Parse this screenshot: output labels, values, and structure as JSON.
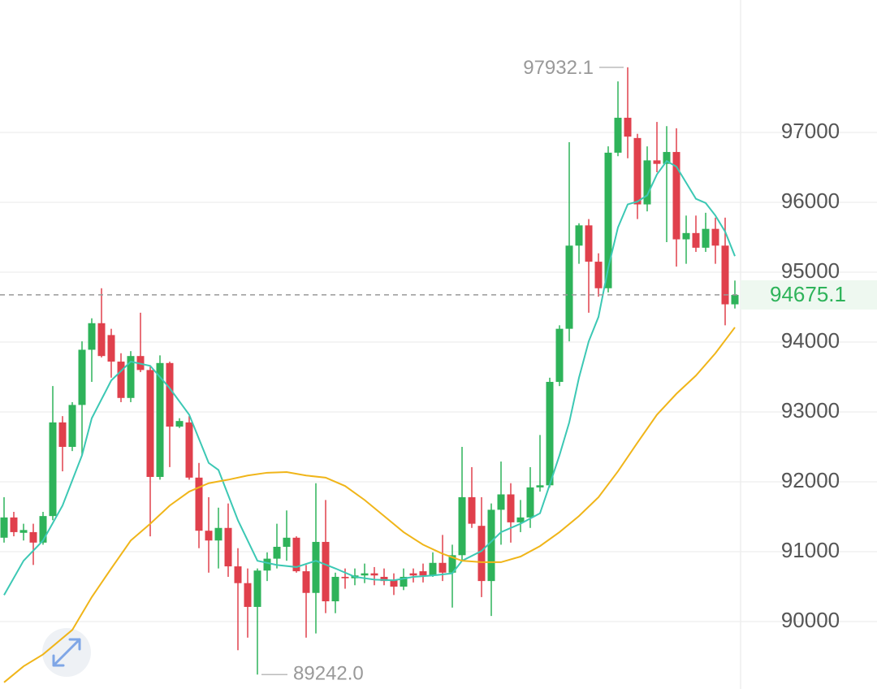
{
  "chart_data": {
    "type": "candlestick",
    "open": [
      91200,
      91490,
      91270,
      91280,
      91130,
      91510,
      92850,
      92500,
      93100,
      93890,
      94270,
      94100,
      93720,
      93200,
      93800,
      93600,
      92070,
      93700,
      92790,
      92850,
      92060,
      91300,
      91160,
      91340,
      90790,
      90550,
      90210,
      90730,
      90900,
      91070,
      91200,
      90720,
      90410,
      91140,
      90290,
      90640,
      90620,
      90660,
      90690,
      90640,
      90600,
      90500,
      90690,
      90720,
      90660,
      90840,
      90700,
      90950,
      91780,
      91370,
      90580,
      91600,
      91820,
      91420,
      91490,
      91920,
      91950,
      93430,
      94190,
      95380,
      95670,
      95150,
      94770,
      96710,
      97210,
      96920,
      95970,
      96600,
      96550,
      96720,
      95470,
      95560,
      95350,
      95620,
      95380,
      94540
    ],
    "high": [
      91780,
      91570,
      91400,
      91400,
      91570,
      93370,
      92940,
      93140,
      94010,
      94340,
      94770,
      94190,
      93840,
      93870,
      94420,
      93660,
      93810,
      93720,
      92910,
      92940,
      92270,
      91780,
      91630,
      91690,
      91050,
      90760,
      90760,
      90990,
      91400,
      91590,
      91220,
      90810,
      91980,
      91740,
      90700,
      90760,
      90760,
      90830,
      90780,
      90760,
      90690,
      90760,
      90760,
      90830,
      90990,
      91240,
      91100,
      92500,
      92210,
      91780,
      91690,
      92290,
      91980,
      91740,
      92210,
      92670,
      93490,
      94240,
      96860,
      95700,
      95760,
      95270,
      96800,
      97730,
      97932.1,
      96980,
      96800,
      97150,
      97090,
      97060,
      95810,
      95810,
      95850,
      95780,
      95780,
      94880
    ],
    "low": [
      91130,
      91220,
      91160,
      90810,
      91100,
      91450,
      92150,
      92440,
      92380,
      93430,
      93780,
      93490,
      93140,
      93140,
      93570,
      91220,
      92030,
      92210,
      92770,
      92030,
      91050,
      90700,
      90760,
      90640,
      89590,
      89770,
      89242,
      90580,
      90760,
      90870,
      90700,
      89770,
      89830,
      90120,
      90120,
      90470,
      90520,
      90550,
      90520,
      90520,
      90380,
      90450,
      90560,
      90560,
      90640,
      90580,
      90200,
      90870,
      91340,
      90350,
      90080,
      91100,
      91130,
      91280,
      91340,
      91860,
      91920,
      93370,
      94010,
      95120,
      94420,
      94650,
      94710,
      96660,
      96630,
      95760,
      95870,
      96430,
      95430,
      95080,
      95120,
      95290,
      95290,
      95120,
      94240,
      94480
    ],
    "close": [
      91490,
      91280,
      91310,
      91130,
      91510,
      92850,
      92500,
      93100,
      93890,
      94270,
      93800,
      93720,
      93200,
      93800,
      93600,
      92070,
      93700,
      92790,
      92870,
      92060,
      91300,
      91160,
      91340,
      90790,
      90550,
      90210,
      90730,
      90900,
      91070,
      91200,
      90720,
      90410,
      91140,
      90290,
      90640,
      90620,
      90660,
      90690,
      90660,
      90580,
      90500,
      90640,
      90660,
      90660,
      90840,
      90700,
      90950,
      91780,
      91400,
      90580,
      91600,
      91820,
      91420,
      91490,
      91920,
      91950,
      93430,
      94190,
      95380,
      95670,
      95150,
      94770,
      96710,
      97210,
      96940,
      95970,
      96600,
      96550,
      96720,
      95470,
      95560,
      95350,
      95620,
      95380,
      94540,
      94675.1
    ],
    "up_color": "#2eb35a",
    "down_color": "#e0404c",
    "lines": [
      {
        "color": "#3cc8b4",
        "x": [
          0,
          2,
          4,
          6,
          8,
          9,
          11,
          13,
          15,
          17,
          19,
          21,
          22,
          24,
          26,
          28,
          30,
          32,
          34,
          36,
          38,
          40,
          42,
          44,
          46,
          47,
          49,
          51,
          53,
          55,
          56,
          57,
          58,
          59,
          60,
          61,
          62,
          63,
          64,
          65,
          66,
          67,
          68,
          69,
          70,
          71,
          72,
          73,
          74,
          75
        ],
        "values": [
          90380,
          90870,
          91160,
          91660,
          92380,
          92910,
          93450,
          93720,
          93660,
          93340,
          92960,
          92270,
          92170,
          91450,
          90870,
          90810,
          90780,
          90870,
          90760,
          90640,
          90600,
          90590,
          90640,
          90660,
          90690,
          90870,
          91010,
          91280,
          91400,
          91550,
          91960,
          92380,
          92850,
          93490,
          94010,
          94360,
          95060,
          95640,
          95970,
          96010,
          96100,
          96400,
          96590,
          96510,
          96280,
          96050,
          95990,
          95810,
          95580,
          95230
        ]
      },
      {
        "color": "#f0b519",
        "x": [
          0,
          2,
          4,
          7,
          9,
          11,
          13,
          15,
          17,
          19,
          21,
          23,
          25,
          27,
          29,
          31,
          33,
          35,
          37,
          39,
          41,
          43,
          45,
          47,
          49,
          51,
          53,
          55,
          57,
          59,
          61,
          63,
          65,
          67,
          69,
          71,
          73,
          75
        ],
        "values": [
          89130,
          89360,
          89530,
          89880,
          90350,
          90760,
          91160,
          91400,
          91660,
          91860,
          91980,
          92030,
          92090,
          92130,
          92140,
          92090,
          92060,
          91940,
          91740,
          91510,
          91280,
          91100,
          90970,
          90870,
          90850,
          90850,
          90930,
          91080,
          91280,
          91510,
          91780,
          92150,
          92560,
          92960,
          93260,
          93520,
          93840,
          94210
        ]
      }
    ],
    "ylim": [
      89035,
      98895
    ],
    "yticks": [
      90000,
      91000,
      92000,
      93000,
      94000,
      95000,
      96000,
      97000
    ],
    "grid": true,
    "last_price": 94675.1,
    "annotations": [
      {
        "value": 97932.1,
        "label": "97932.1",
        "index": 64
      },
      {
        "value": 89242,
        "label": "89242.0",
        "index": 26
      }
    ]
  }
}
